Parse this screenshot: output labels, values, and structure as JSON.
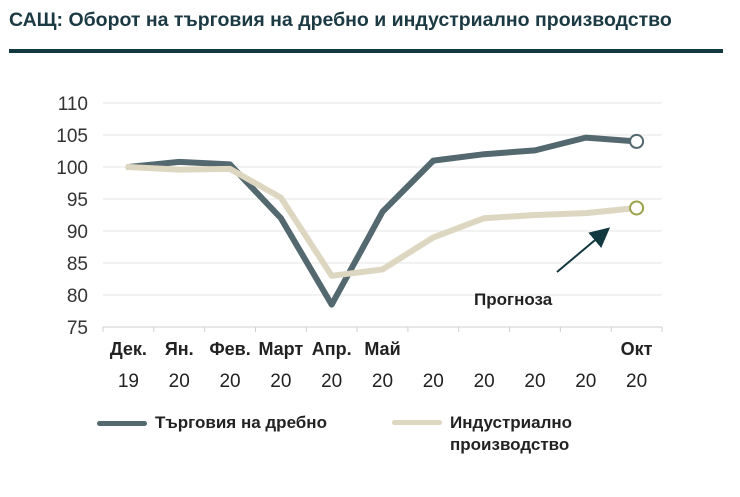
{
  "title": "САЩ: Оборот на търговия на дребно и индустриално производство",
  "chart_data": {
    "type": "line",
    "categories": [
      {
        "month": "Дек.",
        "year": "19"
      },
      {
        "month": "Ян.",
        "year": "20"
      },
      {
        "month": "Фев.",
        "year": "20"
      },
      {
        "month": "Март",
        "year": "20"
      },
      {
        "month": "Апр.",
        "year": "20"
      },
      {
        "month": "Май",
        "year": "20"
      },
      {
        "month": "",
        "year": "20"
      },
      {
        "month": "",
        "year": "20"
      },
      {
        "month": "",
        "year": "20"
      },
      {
        "month": "",
        "year": "20"
      },
      {
        "month": "Окт",
        "year": "20"
      }
    ],
    "series": [
      {
        "name": "Търговия на дребно",
        "color": "#546870",
        "values": [
          100,
          100.8,
          100.4,
          92,
          78.5,
          93,
          101,
          102,
          102.6,
          104.6,
          104
        ]
      },
      {
        "name": "Индустриално производство",
        "color": "#ddd6c0",
        "values": [
          100,
          99.6,
          99.7,
          95.2,
          83,
          84,
          89,
          92,
          92.5,
          92.8,
          93.6
        ]
      }
    ],
    "ylim": [
      75,
      110
    ],
    "yticks": [
      75,
      80,
      85,
      90,
      95,
      100,
      105,
      110
    ],
    "grid": true,
    "annotation": "Прогноза",
    "legend_position": "bottom",
    "legend_lines": [
      [
        "Търговия на дребно"
      ],
      [
        "Индустриално",
        "производство"
      ]
    ],
    "endpoint_markers": true
  }
}
